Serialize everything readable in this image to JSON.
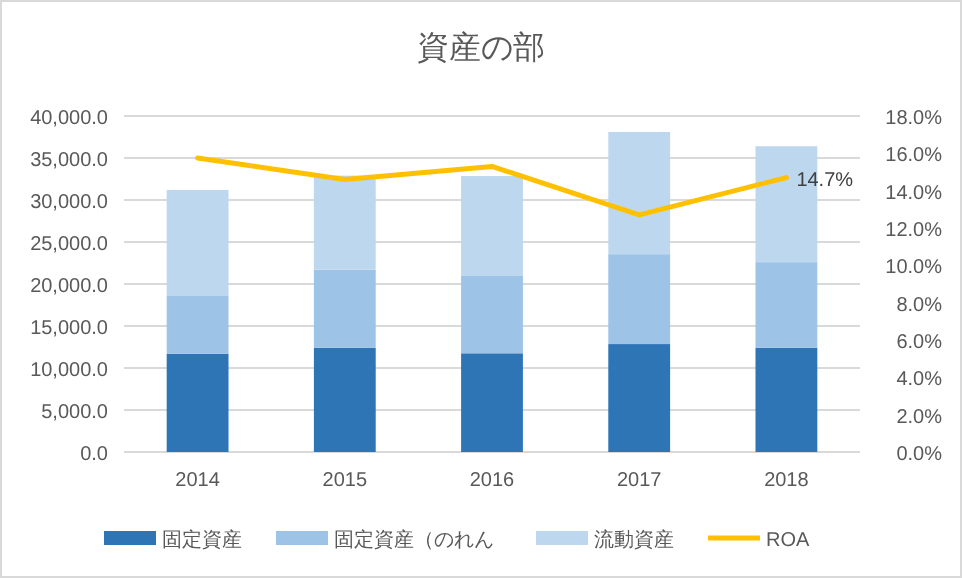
{
  "chart_data": {
    "type": "bar",
    "title": "資産の部",
    "stacked": true,
    "categories": [
      "2014",
      "2015",
      "2016",
      "2017",
      "2018"
    ],
    "series": [
      {
        "name": "固定資産",
        "color": "#2e75b6",
        "values": [
          11700,
          12400,
          11750,
          12850,
          12400
        ]
      },
      {
        "name": "固定資産（のれん",
        "color": "#9dc3e6",
        "values": [
          6950,
          9300,
          9200,
          10700,
          10200
        ]
      },
      {
        "name": "流動資産",
        "color": "#bdd7ee",
        "values": [
          12550,
          11200,
          11900,
          14550,
          13800
        ]
      },
      {
        "name": "ROA",
        "type": "line",
        "axis": "y2",
        "color": "#ffc000",
        "values": [
          15.75,
          14.6,
          15.3,
          12.7,
          14.7
        ],
        "value_labels": [
          null,
          null,
          null,
          null,
          "14.7%"
        ]
      }
    ],
    "ylim": [
      0,
      40000
    ],
    "yticks": [
      {
        "value": 0,
        "label": "0.0"
      },
      {
        "value": 5000,
        "label": "5,000.0"
      },
      {
        "value": 10000,
        "label": "10,000.0"
      },
      {
        "value": 15000,
        "label": "15,000.0"
      },
      {
        "value": 20000,
        "label": "20,000.0"
      },
      {
        "value": 25000,
        "label": "25,000.0"
      },
      {
        "value": 30000,
        "label": "30,000.0"
      },
      {
        "value": 35000,
        "label": "35,000.0"
      },
      {
        "value": 40000,
        "label": "40,000.0"
      }
    ],
    "y2lim": [
      0,
      18
    ],
    "y2ticks": [
      {
        "value": 0,
        "label": "0.0%"
      },
      {
        "value": 2,
        "label": "2.0%"
      },
      {
        "value": 4,
        "label": "4.0%"
      },
      {
        "value": 6,
        "label": "6.0%"
      },
      {
        "value": 8,
        "label": "8.0%"
      },
      {
        "value": 10,
        "label": "10.0%"
      },
      {
        "value": 12,
        "label": "12.0%"
      },
      {
        "value": 14,
        "label": "14.0%"
      },
      {
        "value": 16,
        "label": "16.0%"
      },
      {
        "value": 18,
        "label": "18.0%"
      }
    ],
    "grid": "y",
    "legend": "bottom"
  }
}
